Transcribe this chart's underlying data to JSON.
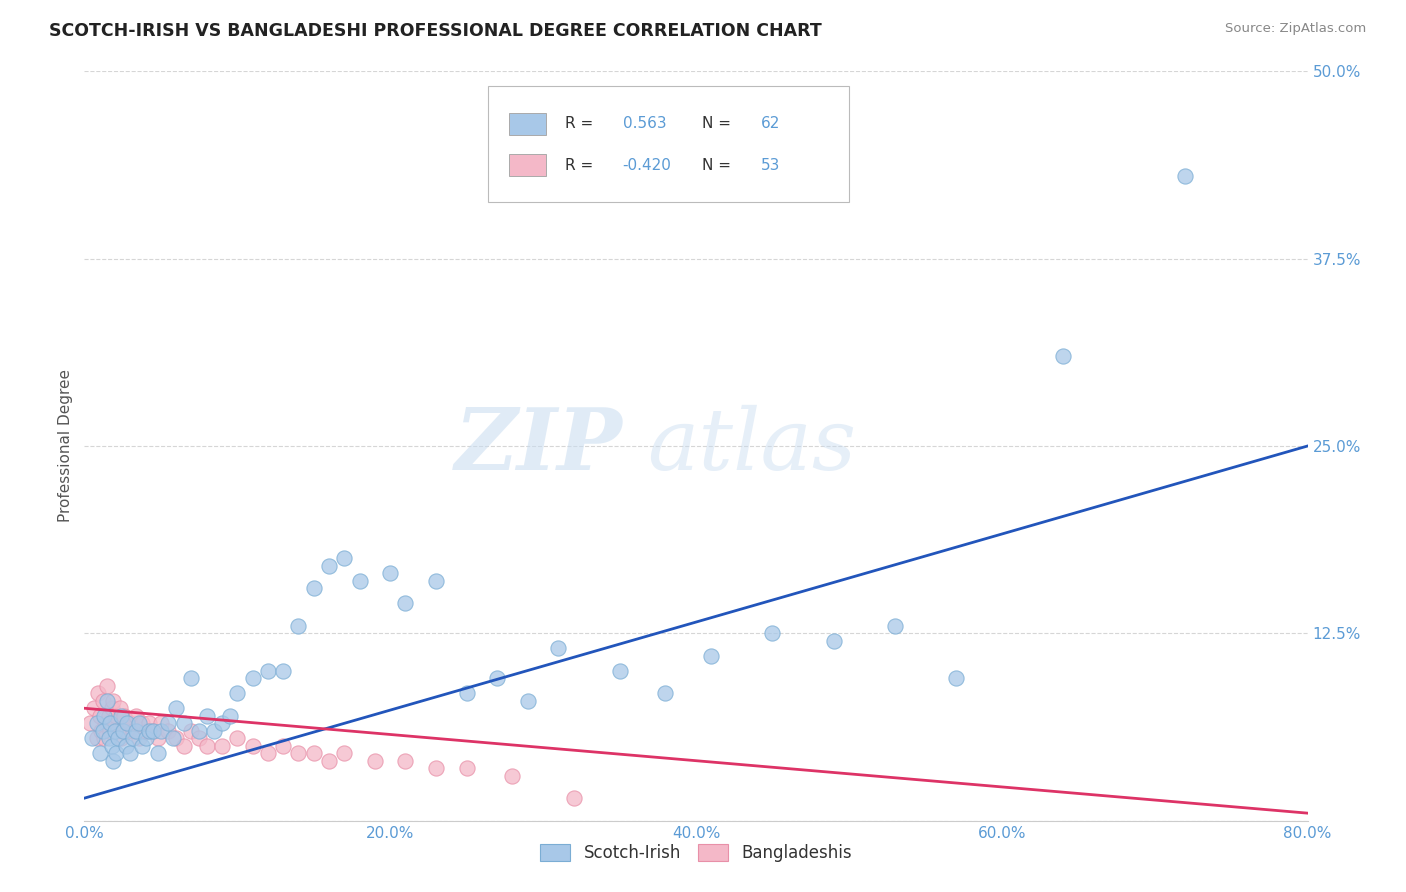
{
  "title": "SCOTCH-IRISH VS BANGLADESHI PROFESSIONAL DEGREE CORRELATION CHART",
  "source": "Source: ZipAtlas.com",
  "ylabel": "Professional Degree",
  "xmin": 0.0,
  "xmax": 0.8,
  "ymin": 0.0,
  "ymax": 0.5,
  "xticks": [
    0.0,
    0.1,
    0.2,
    0.3,
    0.4,
    0.5,
    0.6,
    0.7,
    0.8
  ],
  "xticklabels": [
    "0.0%",
    "",
    "20.0%",
    "",
    "40.0%",
    "",
    "60.0%",
    "",
    "80.0%"
  ],
  "yticks": [
    0.0,
    0.125,
    0.25,
    0.375,
    0.5
  ],
  "yticklabels": [
    "",
    "12.5%",
    "25.0%",
    "37.5%",
    "50.0%"
  ],
  "blue_color": "#A8C8E8",
  "blue_edge_color": "#7BADD4",
  "pink_color": "#F4B8C8",
  "pink_edge_color": "#E890A8",
  "blue_line_color": "#2255BB",
  "pink_line_color": "#DD3366",
  "r_blue": 0.563,
  "n_blue": 62,
  "r_pink": -0.42,
  "n_pink": 53,
  "legend_label_blue": "Scotch-Irish",
  "legend_label_pink": "Bangladeshis",
  "watermark_zip": "ZIP",
  "watermark_atlas": "atlas",
  "tick_color": "#5B9BD5",
  "blue_scatter_x": [
    0.005,
    0.008,
    0.01,
    0.012,
    0.013,
    0.015,
    0.016,
    0.017,
    0.018,
    0.019,
    0.02,
    0.021,
    0.022,
    0.024,
    0.025,
    0.027,
    0.028,
    0.03,
    0.032,
    0.034,
    0.036,
    0.038,
    0.04,
    0.042,
    0.045,
    0.048,
    0.05,
    0.055,
    0.058,
    0.06,
    0.065,
    0.07,
    0.075,
    0.08,
    0.085,
    0.09,
    0.095,
    0.1,
    0.11,
    0.12,
    0.13,
    0.14,
    0.15,
    0.16,
    0.17,
    0.18,
    0.2,
    0.21,
    0.23,
    0.25,
    0.27,
    0.29,
    0.31,
    0.35,
    0.38,
    0.41,
    0.45,
    0.49,
    0.53,
    0.57,
    0.64,
    0.72
  ],
  "blue_scatter_y": [
    0.055,
    0.065,
    0.045,
    0.06,
    0.07,
    0.08,
    0.055,
    0.065,
    0.05,
    0.04,
    0.06,
    0.045,
    0.055,
    0.07,
    0.06,
    0.05,
    0.065,
    0.045,
    0.055,
    0.06,
    0.065,
    0.05,
    0.055,
    0.06,
    0.06,
    0.045,
    0.06,
    0.065,
    0.055,
    0.075,
    0.065,
    0.095,
    0.06,
    0.07,
    0.06,
    0.065,
    0.07,
    0.085,
    0.095,
    0.1,
    0.1,
    0.13,
    0.155,
    0.17,
    0.175,
    0.16,
    0.165,
    0.145,
    0.16,
    0.085,
    0.095,
    0.08,
    0.115,
    0.1,
    0.085,
    0.11,
    0.125,
    0.12,
    0.13,
    0.095,
    0.31,
    0.43
  ],
  "pink_scatter_x": [
    0.004,
    0.006,
    0.008,
    0.009,
    0.01,
    0.011,
    0.012,
    0.013,
    0.014,
    0.015,
    0.016,
    0.017,
    0.018,
    0.019,
    0.02,
    0.021,
    0.022,
    0.023,
    0.024,
    0.025,
    0.026,
    0.028,
    0.03,
    0.032,
    0.034,
    0.036,
    0.038,
    0.04,
    0.042,
    0.045,
    0.048,
    0.05,
    0.055,
    0.06,
    0.065,
    0.07,
    0.075,
    0.08,
    0.09,
    0.1,
    0.11,
    0.12,
    0.13,
    0.14,
    0.15,
    0.16,
    0.17,
    0.19,
    0.21,
    0.23,
    0.25,
    0.28,
    0.32
  ],
  "pink_scatter_y": [
    0.065,
    0.075,
    0.055,
    0.085,
    0.07,
    0.06,
    0.08,
    0.055,
    0.065,
    0.09,
    0.07,
    0.06,
    0.075,
    0.08,
    0.065,
    0.07,
    0.06,
    0.075,
    0.055,
    0.065,
    0.07,
    0.06,
    0.065,
    0.06,
    0.07,
    0.055,
    0.065,
    0.06,
    0.065,
    0.06,
    0.055,
    0.065,
    0.06,
    0.055,
    0.05,
    0.06,
    0.055,
    0.05,
    0.05,
    0.055,
    0.05,
    0.045,
    0.05,
    0.045,
    0.045,
    0.04,
    0.045,
    0.04,
    0.04,
    0.035,
    0.035,
    0.03,
    0.015
  ],
  "blue_trend_x": [
    0.0,
    0.8
  ],
  "blue_trend_y": [
    0.015,
    0.25
  ],
  "pink_trend_x": [
    0.0,
    0.8
  ],
  "pink_trend_y": [
    0.075,
    0.005
  ]
}
